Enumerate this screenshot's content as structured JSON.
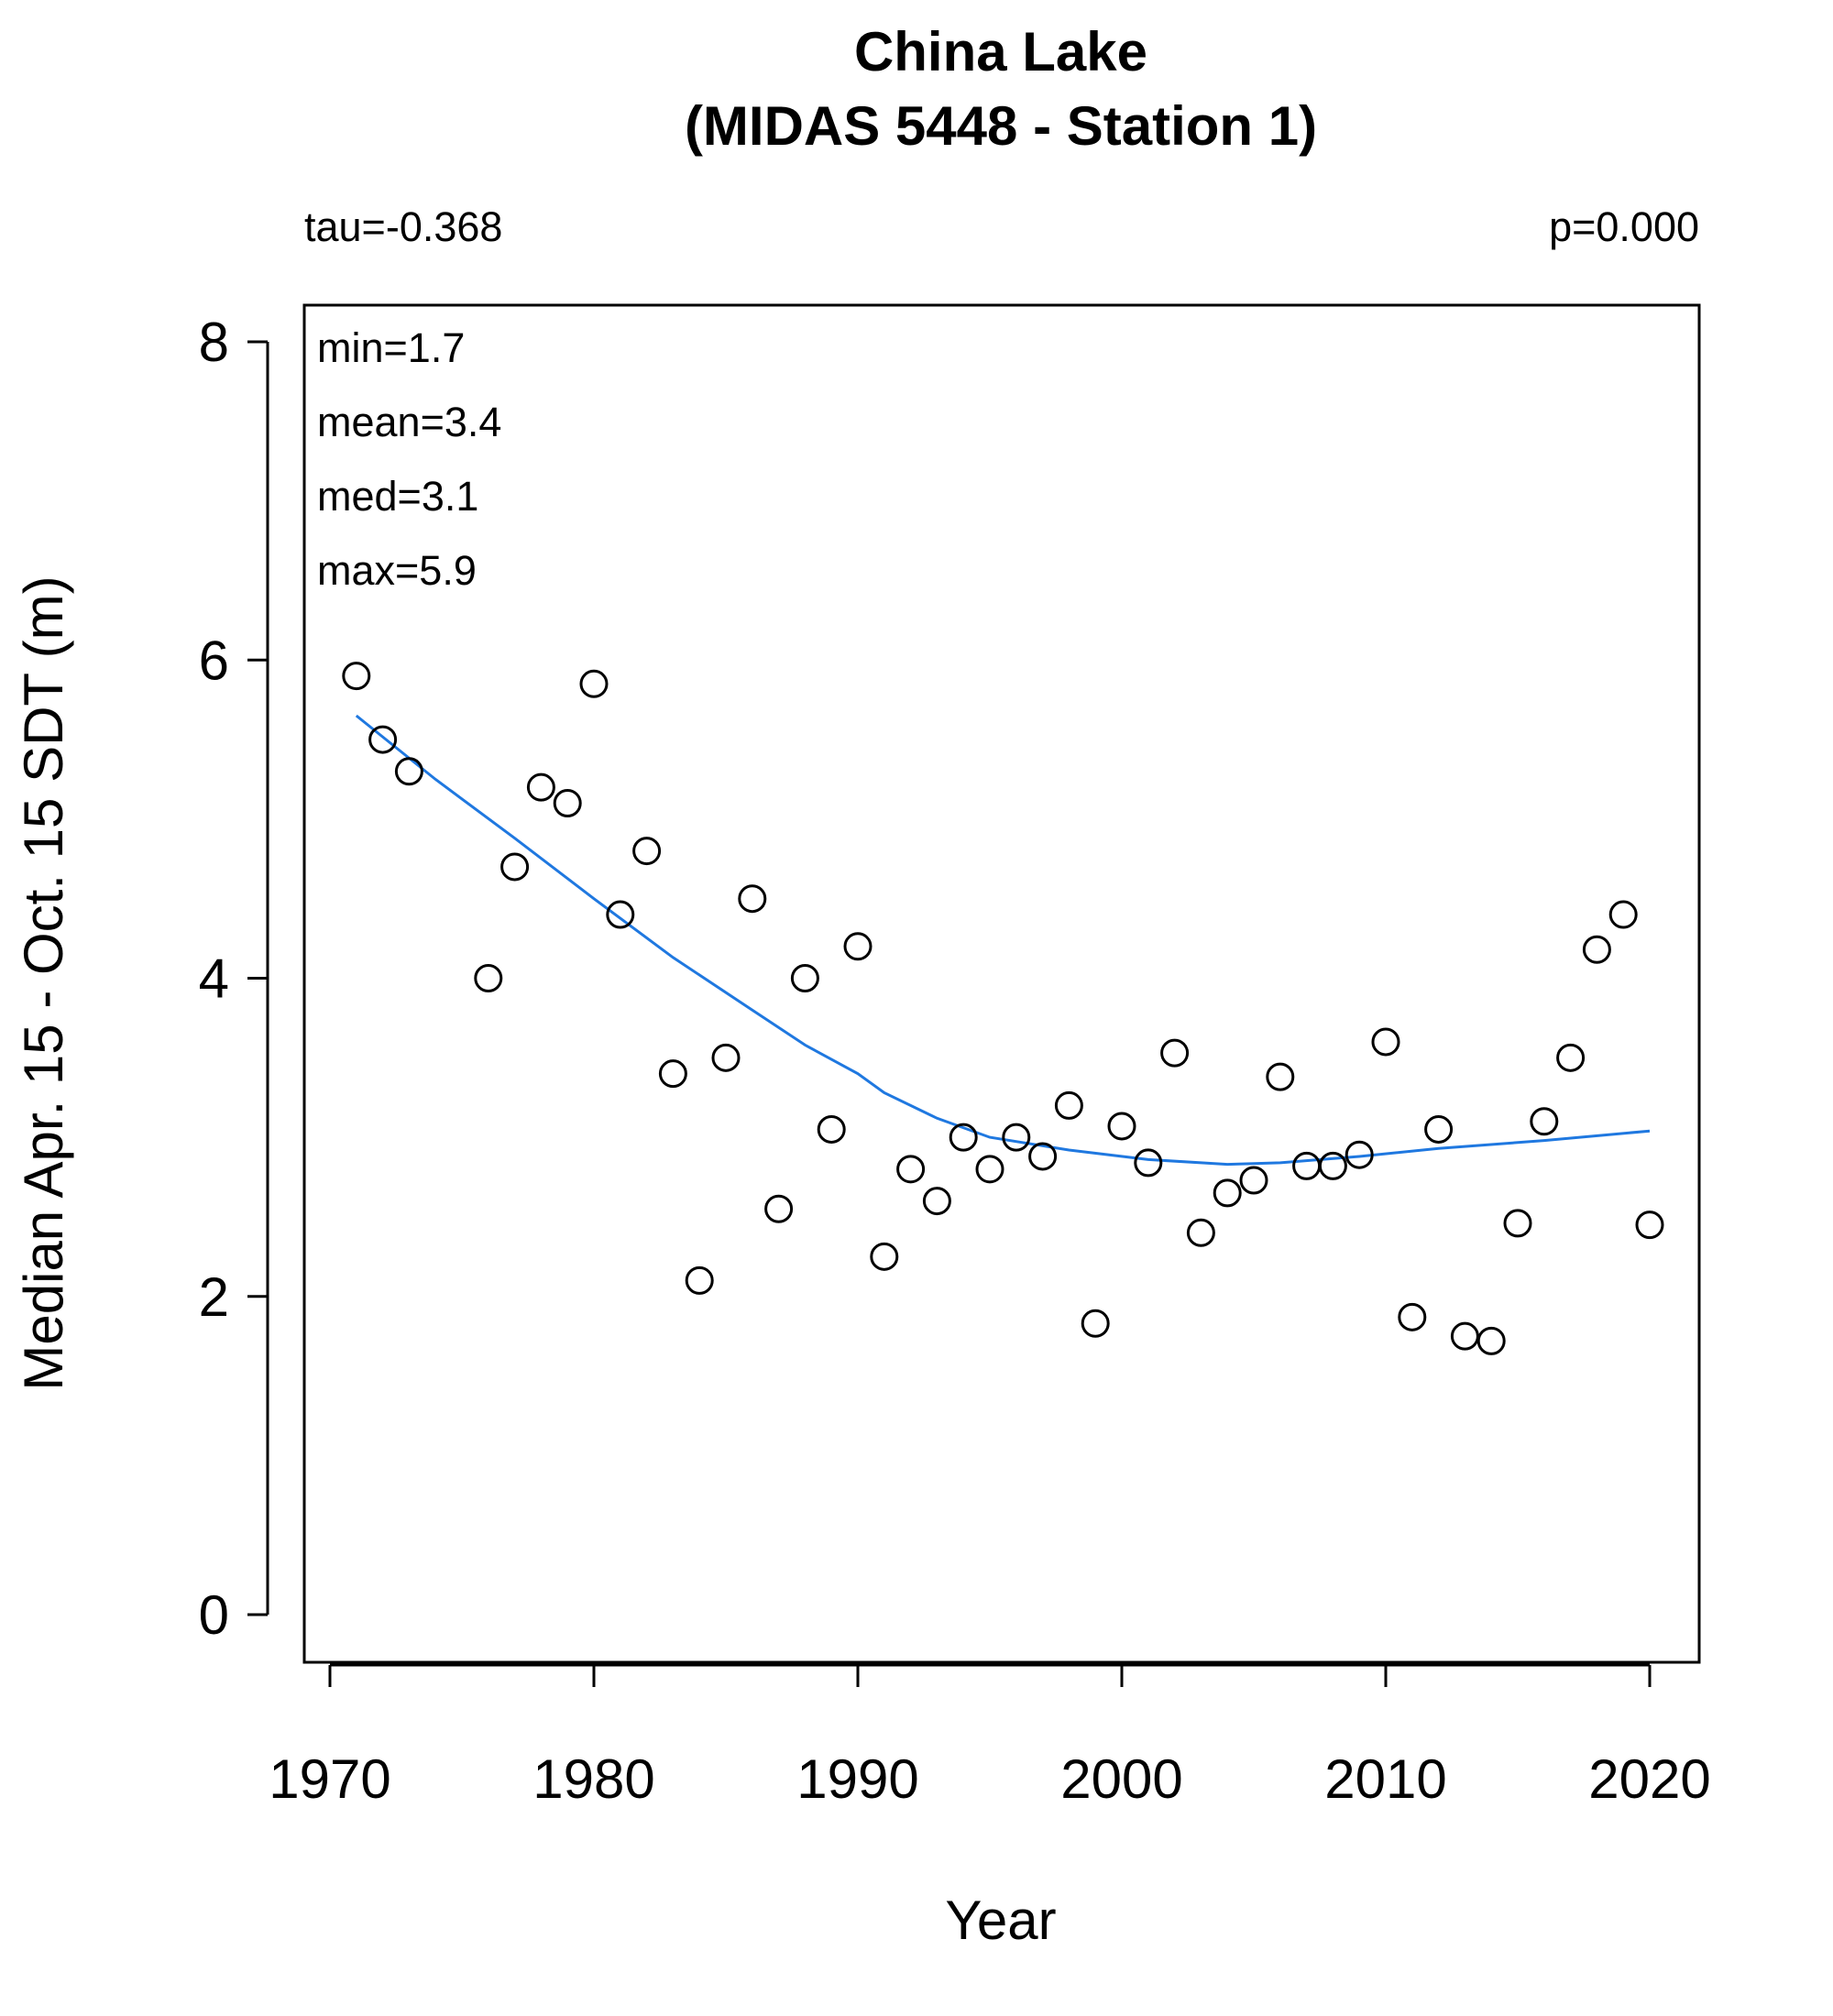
{
  "chart_data": {
    "type": "scatter",
    "title": "China Lake",
    "subtitle": "(MIDAS 5448 - Station 1)",
    "xlabel": "Year",
    "ylabel": "Median Apr. 15 - Oct. 15 SDT (m)",
    "xlim": [
      1969,
      2022
    ],
    "ylim": [
      -0.3,
      8.25
    ],
    "xticks": [
      1970,
      1980,
      1990,
      2000,
      2010,
      2020
    ],
    "yticks": [
      0,
      2,
      4,
      6,
      8
    ],
    "grid": false,
    "annotations": {
      "tau": "tau=-0.368",
      "p": "p=0.000",
      "min": "min=1.7",
      "mean": "mean=3.4",
      "med": "med=3.1",
      "max": "max=5.9"
    },
    "points": [
      {
        "x": 1971,
        "y": 5.9
      },
      {
        "x": 1972,
        "y": 5.5
      },
      {
        "x": 1973,
        "y": 5.3
      },
      {
        "x": 1976,
        "y": 4.0
      },
      {
        "x": 1977,
        "y": 4.7
      },
      {
        "x": 1978,
        "y": 5.2
      },
      {
        "x": 1979,
        "y": 5.1
      },
      {
        "x": 1980,
        "y": 5.85
      },
      {
        "x": 1981,
        "y": 4.4
      },
      {
        "x": 1982,
        "y": 4.8
      },
      {
        "x": 1983,
        "y": 3.4
      },
      {
        "x": 1984,
        "y": 2.1
      },
      {
        "x": 1985,
        "y": 3.5
      },
      {
        "x": 1986,
        "y": 4.5
      },
      {
        "x": 1987,
        "y": 2.55
      },
      {
        "x": 1988,
        "y": 4.0
      },
      {
        "x": 1989,
        "y": 3.05
      },
      {
        "x": 1990,
        "y": 4.2
      },
      {
        "x": 1991,
        "y": 2.25
      },
      {
        "x": 1992,
        "y": 2.8
      },
      {
        "x": 1993,
        "y": 2.6
      },
      {
        "x": 1994,
        "y": 3.0
      },
      {
        "x": 1995,
        "y": 2.8
      },
      {
        "x": 1996,
        "y": 3.0
      },
      {
        "x": 1997,
        "y": 2.88
      },
      {
        "x": 1998,
        "y": 3.2
      },
      {
        "x": 1999,
        "y": 1.83
      },
      {
        "x": 2000,
        "y": 3.07
      },
      {
        "x": 2001,
        "y": 2.84
      },
      {
        "x": 2002,
        "y": 3.53
      },
      {
        "x": 2003,
        "y": 2.4
      },
      {
        "x": 2004,
        "y": 2.65
      },
      {
        "x": 2005,
        "y": 2.73
      },
      {
        "x": 2006,
        "y": 3.38
      },
      {
        "x": 2007,
        "y": 2.82
      },
      {
        "x": 2008,
        "y": 2.82
      },
      {
        "x": 2009,
        "y": 2.89
      },
      {
        "x": 2010,
        "y": 3.6
      },
      {
        "x": 2011,
        "y": 1.87
      },
      {
        "x": 2012,
        "y": 3.05
      },
      {
        "x": 2013,
        "y": 1.75
      },
      {
        "x": 2014,
        "y": 1.72
      },
      {
        "x": 2015,
        "y": 2.46
      },
      {
        "x": 2016,
        "y": 3.1
      },
      {
        "x": 2017,
        "y": 3.5
      },
      {
        "x": 2018,
        "y": 4.18
      },
      {
        "x": 2019,
        "y": 4.4
      },
      {
        "x": 2020,
        "y": 2.45
      }
    ],
    "trend_line": {
      "color": "#1f78e0",
      "x": [
        1971,
        1974,
        1977,
        1980,
        1983,
        1986,
        1988,
        1990,
        1991,
        1993,
        1995,
        1998,
        2001,
        2004,
        2006,
        2009,
        2012,
        2016,
        2020
      ],
      "y": [
        5.65,
        5.25,
        4.88,
        4.5,
        4.13,
        3.8,
        3.58,
        3.4,
        3.28,
        3.12,
        3.0,
        2.92,
        2.86,
        2.83,
        2.84,
        2.88,
        2.93,
        2.98,
        3.04
      ]
    },
    "point_style": {
      "color": "#000000",
      "fill": "none"
    }
  }
}
